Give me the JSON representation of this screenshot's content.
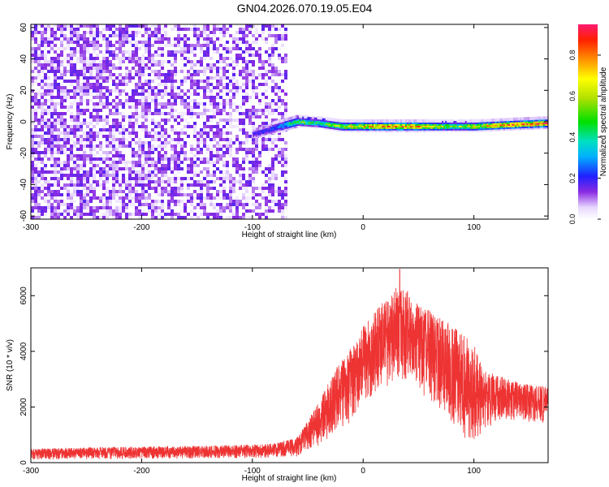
{
  "figure": {
    "title": "GN04.2026.070.19.05.E04"
  },
  "chart_data": [
    {
      "type": "heatmap",
      "xlabel": "Height of straight line (km)",
      "ylabel": "Frequency (Hz)",
      "xlim": [
        -300,
        167
      ],
      "ylim": [
        -62,
        62
      ],
      "xticks": [
        -300,
        -200,
        -100,
        0,
        100
      ],
      "yticks": [
        -60,
        -40,
        -20,
        0,
        20,
        40,
        60
      ],
      "noise_region_x": [
        -300,
        -70
      ],
      "signal_band": [
        {
          "x": -100,
          "f": -7,
          "amp": 0.18
        },
        {
          "x": -80,
          "f": -3,
          "amp": 0.25
        },
        {
          "x": -60,
          "f": 1,
          "amp": 0.55
        },
        {
          "x": -40,
          "f": 0,
          "amp": 0.5
        },
        {
          "x": -20,
          "f": -2,
          "amp": 0.65
        },
        {
          "x": 0,
          "f": -2,
          "amp": 0.75
        },
        {
          "x": 20,
          "f": -2,
          "amp": 0.85
        },
        {
          "x": 40,
          "f": -2,
          "amp": 0.85
        },
        {
          "x": 60,
          "f": -2,
          "amp": 0.75
        },
        {
          "x": 80,
          "f": -2,
          "amp": 0.55
        },
        {
          "x": 100,
          "f": -2,
          "amp": 0.7
        },
        {
          "x": 130,
          "f": -1,
          "amp": 0.85
        },
        {
          "x": 165,
          "f": 0,
          "amp": 0.95
        }
      ],
      "colorbar": {
        "label": "Normalized spectral amplitude",
        "range": [
          0,
          0.95
        ],
        "ticks": [
          "0.0",
          "0.2",
          "0.4",
          "0.6",
          "0.8"
        ]
      }
    },
    {
      "type": "line",
      "xlabel": "Height of straight line (km)",
      "ylabel": "SNR (10 * v/v)",
      "xlim": [
        -300,
        167
      ],
      "ylim": [
        0,
        7000
      ],
      "xticks": [
        -300,
        -200,
        -100,
        0,
        100
      ],
      "yticks": [
        0,
        2000,
        4000,
        6000
      ],
      "color": "#ee3333",
      "envelope": {
        "x": [
          -300,
          -250,
          -200,
          -150,
          -100,
          -80,
          -60,
          -50,
          -40,
          -30,
          -20,
          -10,
          0,
          10,
          20,
          30,
          40,
          50,
          60,
          70,
          80,
          90,
          100,
          110,
          120,
          130,
          140,
          150,
          160,
          167
        ],
        "lower": [
          100,
          120,
          130,
          140,
          160,
          180,
          220,
          400,
          600,
          900,
          1200,
          1500,
          2000,
          2400,
          2700,
          3000,
          2900,
          2600,
          2200,
          1800,
          1400,
          900,
          400,
          1200,
          1400,
          1500,
          1500,
          1400,
          1400,
          1500
        ],
        "upper": [
          500,
          550,
          580,
          600,
          650,
          700,
          900,
          1500,
          2200,
          3000,
          3700,
          4200,
          4900,
          5400,
          5900,
          6300,
          6200,
          5700,
          5500,
          5200,
          5000,
          4600,
          4300,
          3300,
          3200,
          3000,
          2900,
          2800,
          2800,
          2700
        ]
      },
      "peak": {
        "x": 33,
        "y": 6950
      }
    }
  ]
}
